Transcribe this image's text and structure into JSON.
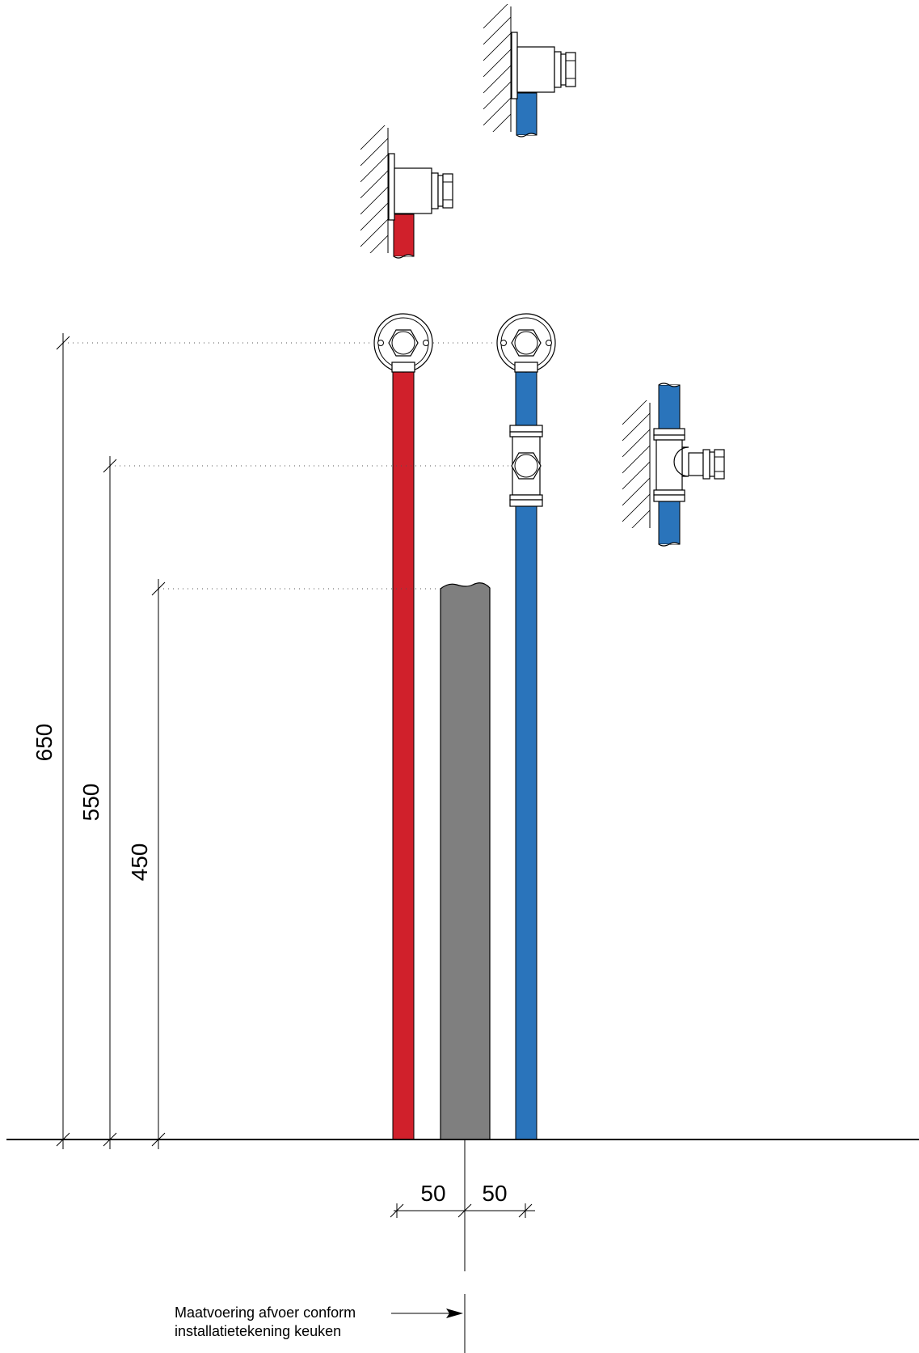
{
  "dimensions": {
    "cold_height": "650",
    "cold_tee_height": "550",
    "drain_height": "450",
    "offset_left": "50",
    "offset_right": "50"
  },
  "note": {
    "line1": "Maatvoering afvoer conform",
    "line2": "installatietekening keuken"
  },
  "colors": {
    "hot_pipe": "#d0202b",
    "cold_pipe": "#2a74bb",
    "drain_pipe": "#7f7f7f"
  }
}
